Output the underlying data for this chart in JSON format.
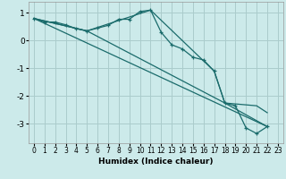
{
  "xlabel": "Humidex (Indice chaleur)",
  "background_color": "#cceaea",
  "grid_color": "#aacccc",
  "line_color": "#1a6b6b",
  "xlim": [
    -0.5,
    23.5
  ],
  "ylim": [
    -3.7,
    1.4
  ],
  "yticks": [
    -3,
    -2,
    -1,
    0,
    1
  ],
  "xticks": [
    0,
    1,
    2,
    3,
    4,
    5,
    6,
    7,
    8,
    9,
    10,
    11,
    12,
    13,
    14,
    15,
    16,
    17,
    18,
    19,
    20,
    21,
    22,
    23
  ],
  "lines": [
    {
      "x": [
        0,
        1,
        2,
        3,
        4,
        5,
        6,
        7,
        8,
        9,
        10,
        11,
        12,
        13,
        14,
        15,
        16,
        17,
        18,
        19,
        20,
        21,
        22
      ],
      "y": [
        0.8,
        0.67,
        0.67,
        0.57,
        0.43,
        0.35,
        0.45,
        0.55,
        0.77,
        0.77,
        1.05,
        1.1,
        0.3,
        -0.15,
        -0.3,
        -0.6,
        -0.7,
        -1.1,
        -2.25,
        -2.35,
        -3.15,
        -3.35,
        -3.1
      ],
      "marker": true
    },
    {
      "x": [
        0,
        22
      ],
      "y": [
        0.8,
        -3.1
      ],
      "marker": false
    },
    {
      "x": [
        0,
        5,
        18,
        22
      ],
      "y": [
        0.8,
        0.35,
        -2.25,
        -3.1
      ],
      "marker": false
    },
    {
      "x": [
        0,
        5,
        11,
        17,
        18,
        21,
        22
      ],
      "y": [
        0.8,
        0.35,
        1.1,
        -1.1,
        -2.25,
        -2.35,
        -2.6
      ],
      "marker": false
    }
  ]
}
